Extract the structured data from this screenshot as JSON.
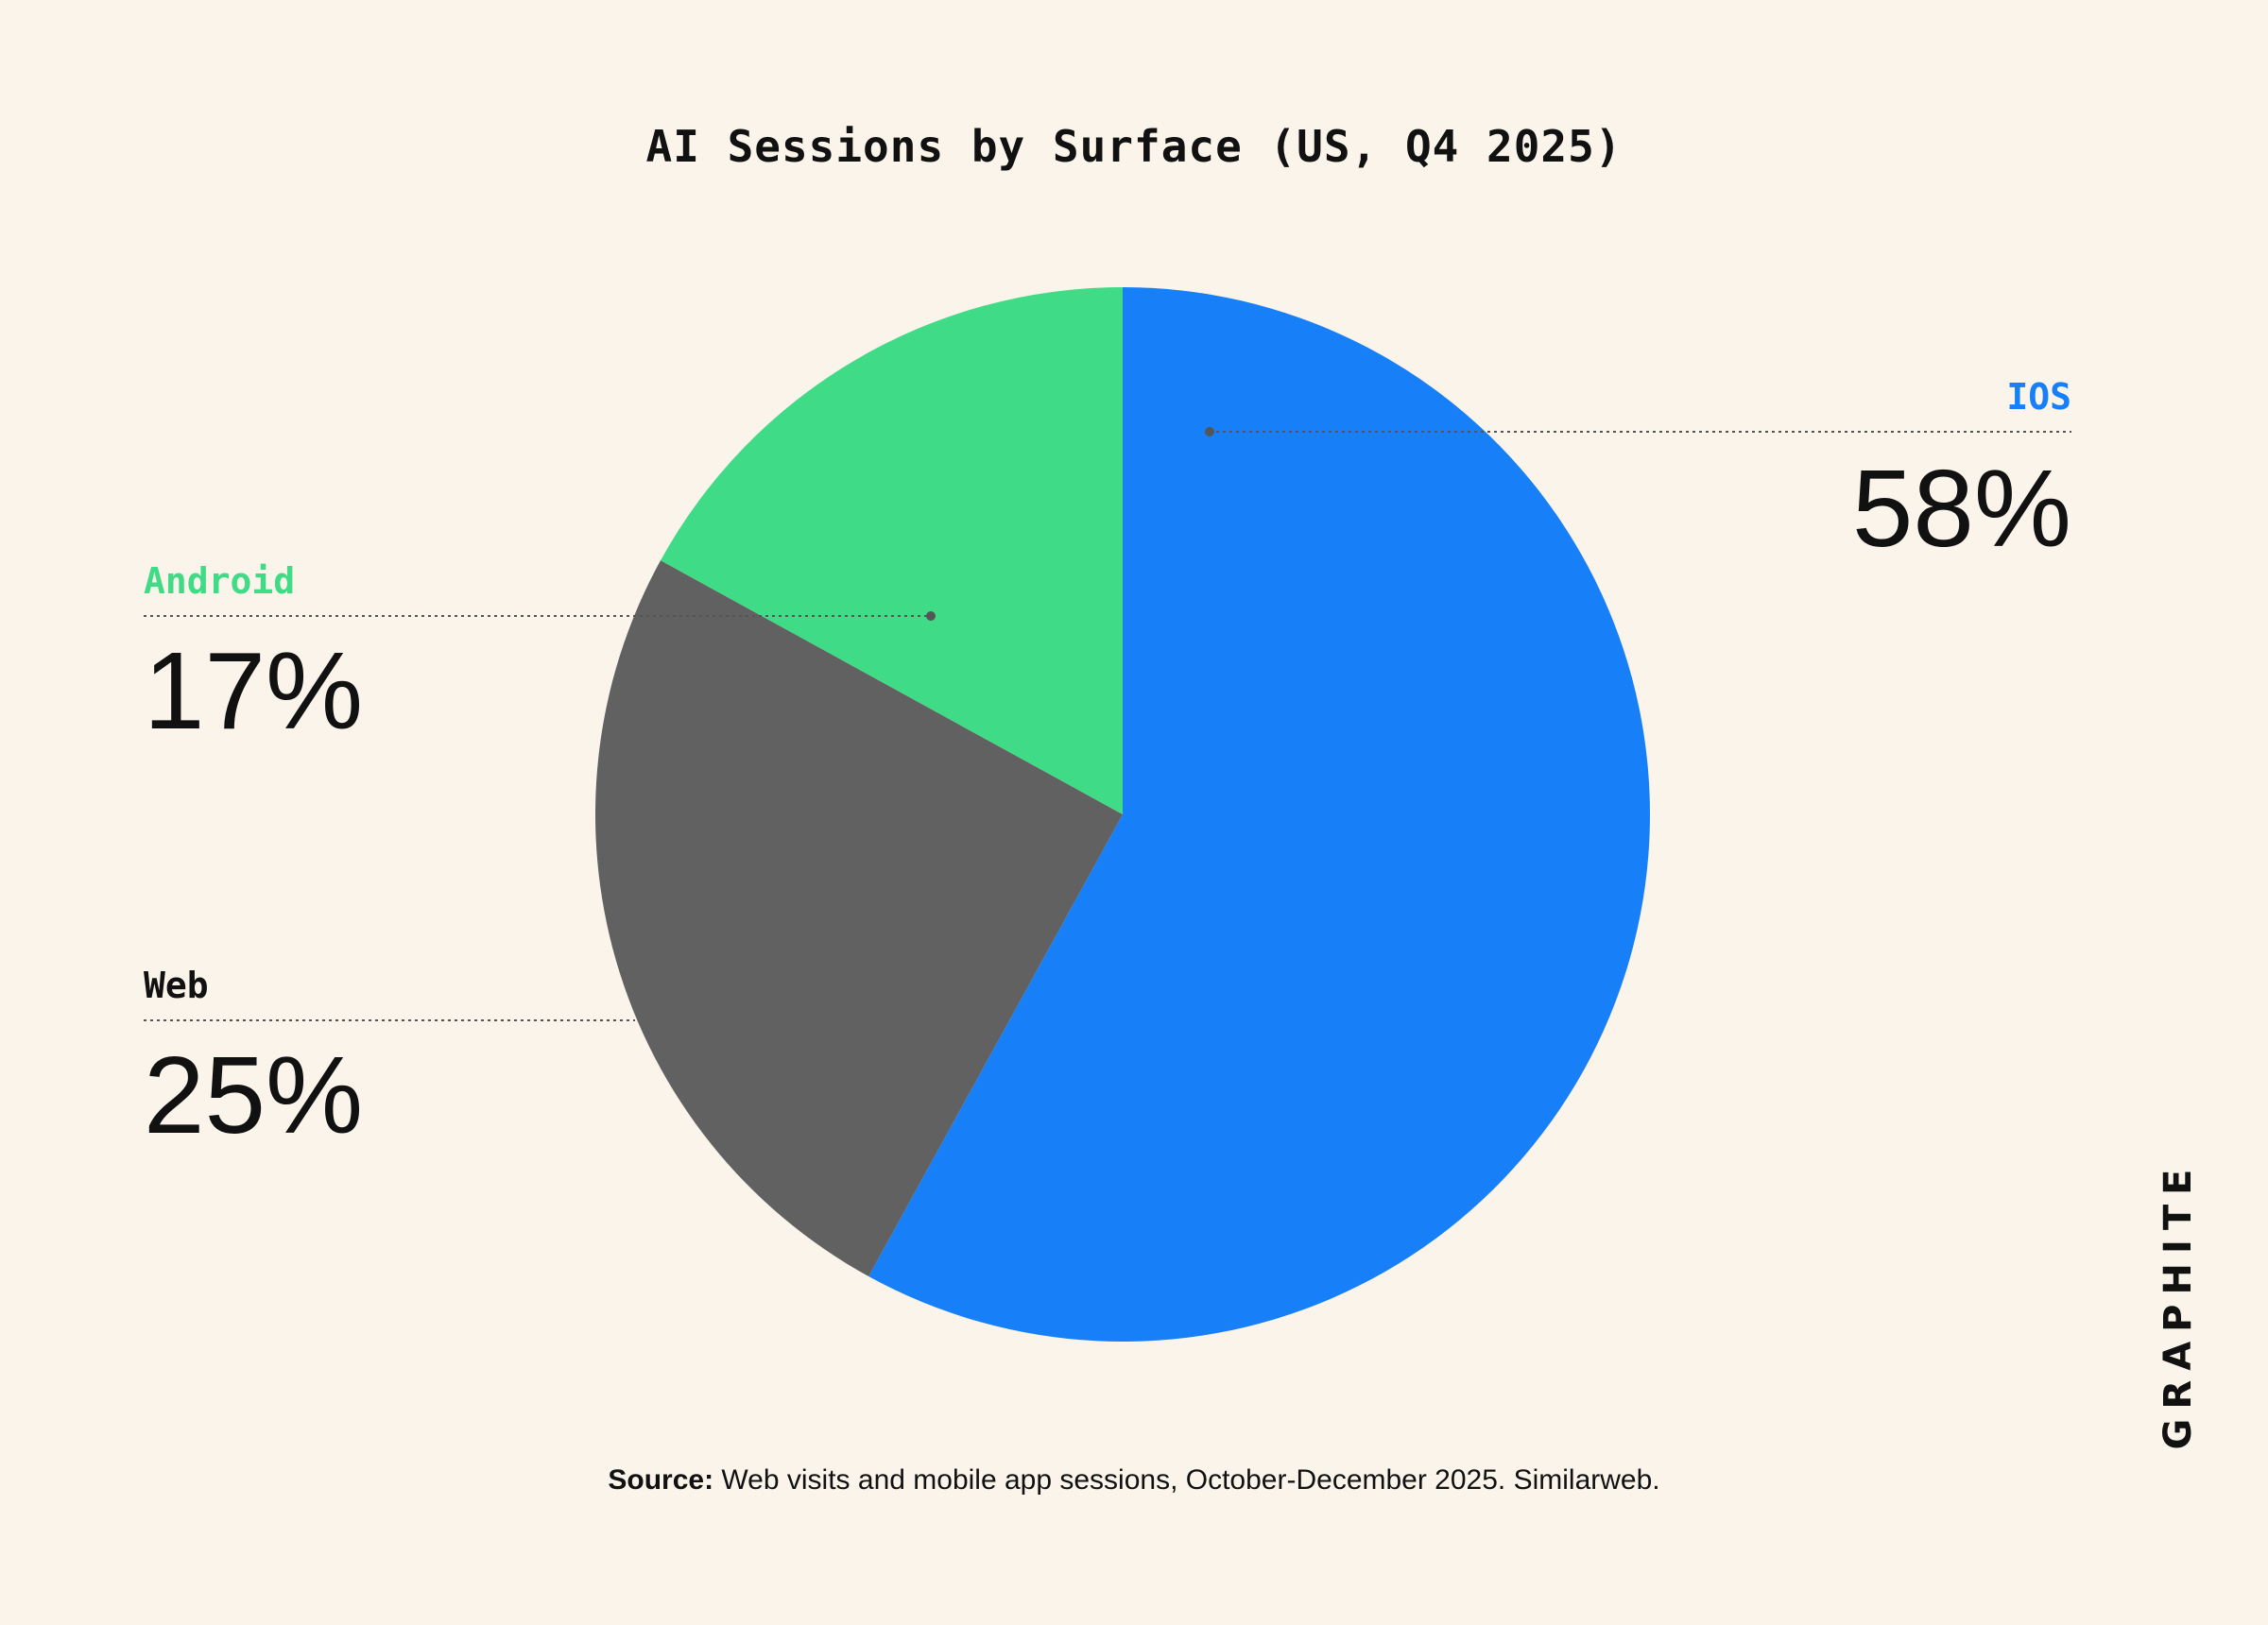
{
  "title": "AI Sessions by Surface (US, Q4 2025)",
  "source": {
    "label": "Source:",
    "text": "Web visits and mobile app sessions, October-December 2025. Similarweb."
  },
  "logo": "GRAPHITE",
  "chart_data": {
    "type": "pie",
    "title": "AI Sessions by Surface (US, Q4 2025)",
    "start_angle": "12 o'clock",
    "direction": "clockwise",
    "slices": [
      {
        "label": "IOS",
        "value": 58,
        "display": "58%",
        "color": "#177ff8",
        "label_color": "#177ff8"
      },
      {
        "label": "Web",
        "value": 25,
        "display": "25%",
        "color": "#616161",
        "label_color": "#111111"
      },
      {
        "label": "Android",
        "value": 17,
        "display": "17%",
        "color": "#3fdb86",
        "label_color": "#3fdb86"
      }
    ]
  }
}
